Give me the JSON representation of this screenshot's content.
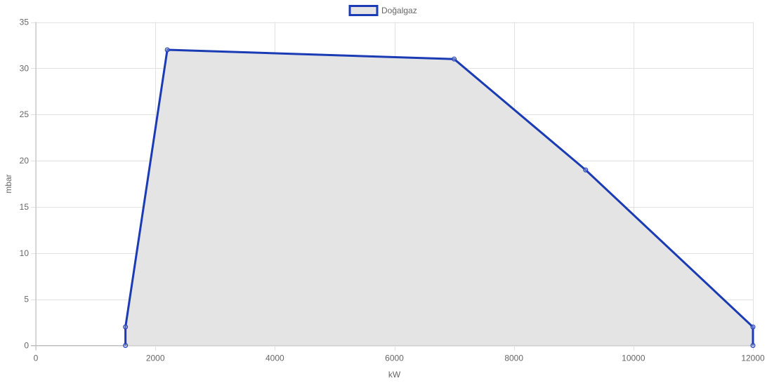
{
  "chart_data": {
    "type": "area",
    "title": "",
    "xlabel": "kW",
    "ylabel": "mbar",
    "xlim": [
      0,
      12000
    ],
    "ylim": [
      0,
      35
    ],
    "xticks": [
      0,
      2000,
      4000,
      6000,
      8000,
      10000,
      12000
    ],
    "yticks": [
      0,
      5,
      10,
      15,
      20,
      25,
      30,
      35
    ],
    "grid": true,
    "legend_position": "top-center",
    "series": [
      {
        "name": "Doğalgaz",
        "color": "#1a3bb3",
        "fill": "#e4e4e4",
        "points": [
          {
            "x": 1500,
            "y": 0
          },
          {
            "x": 1500,
            "y": 2
          },
          {
            "x": 2200,
            "y": 32
          },
          {
            "x": 7000,
            "y": 31
          },
          {
            "x": 9200,
            "y": 19
          },
          {
            "x": 12000,
            "y": 2
          },
          {
            "x": 12000,
            "y": 0
          }
        ]
      }
    ]
  }
}
